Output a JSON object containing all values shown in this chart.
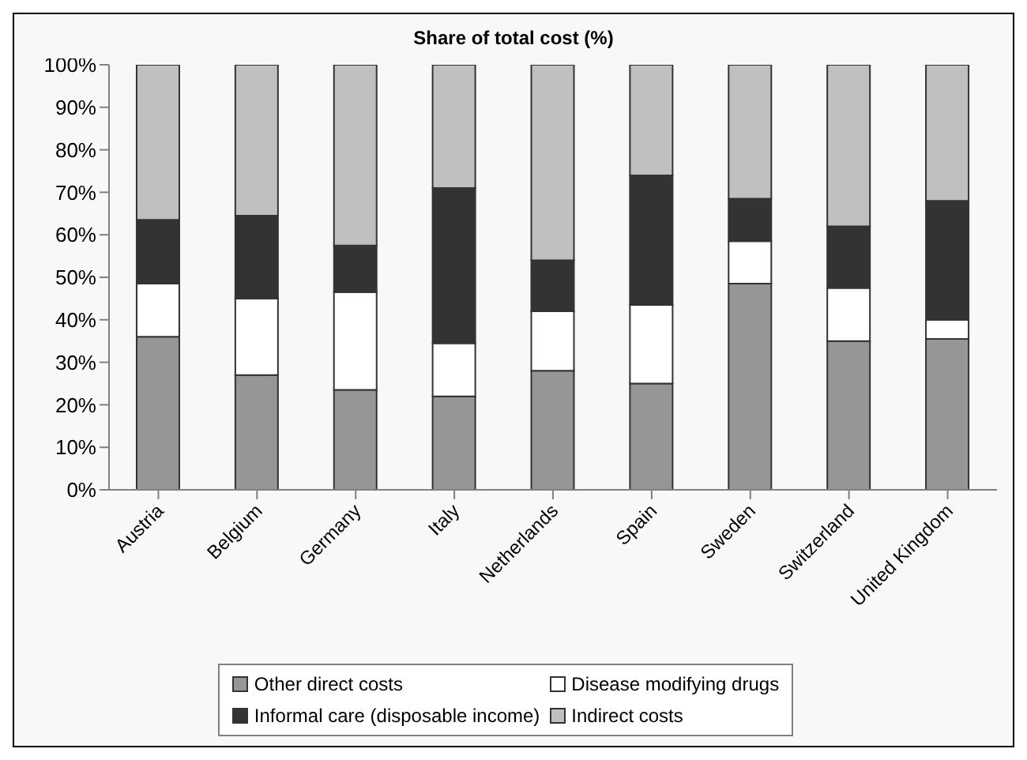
{
  "chart_data": {
    "type": "bar",
    "title": "Share of total cost (%)",
    "stacked": true,
    "categories": [
      "Austria",
      "Belgium",
      "Germany",
      "Italy",
      "Netherlands",
      "Spain",
      "Sweden",
      "Switzerland",
      "United Kingdom"
    ],
    "series": [
      {
        "name": "Other direct costs",
        "color": "#969696",
        "values": [
          36,
          27,
          23.5,
          22,
          28,
          25,
          48.5,
          35,
          35.5
        ]
      },
      {
        "name": "Disease modifying drugs",
        "color": "#ffffff",
        "values": [
          12.5,
          18,
          23,
          12.5,
          14,
          18.5,
          10,
          12.5,
          4.5
        ]
      },
      {
        "name": "Informal care (disposable income)",
        "color": "#333333",
        "values": [
          15,
          19.5,
          11,
          36.5,
          12,
          30.5,
          10,
          14.5,
          28
        ]
      },
      {
        "name": "Indirect costs",
        "color": "#c0c0c0",
        "values": [
          36.5,
          35.5,
          42.5,
          29,
          46,
          26,
          31.5,
          38,
          32
        ]
      }
    ],
    "ylim": [
      0,
      100
    ],
    "yticks": [
      {
        "value": 0,
        "label": "0%"
      },
      {
        "value": 10,
        "label": "10%"
      },
      {
        "value": 20,
        "label": "20%"
      },
      {
        "value": 30,
        "label": "30%"
      },
      {
        "value": 40,
        "label": "40%"
      },
      {
        "value": 50,
        "label": "50%"
      },
      {
        "value": 60,
        "label": "60%"
      },
      {
        "value": 70,
        "label": "70%"
      },
      {
        "value": 80,
        "label": "80%"
      },
      {
        "value": 90,
        "label": "90%"
      },
      {
        "value": 100,
        "label": "100%"
      }
    ],
    "grid": false,
    "legend": "bottom"
  }
}
